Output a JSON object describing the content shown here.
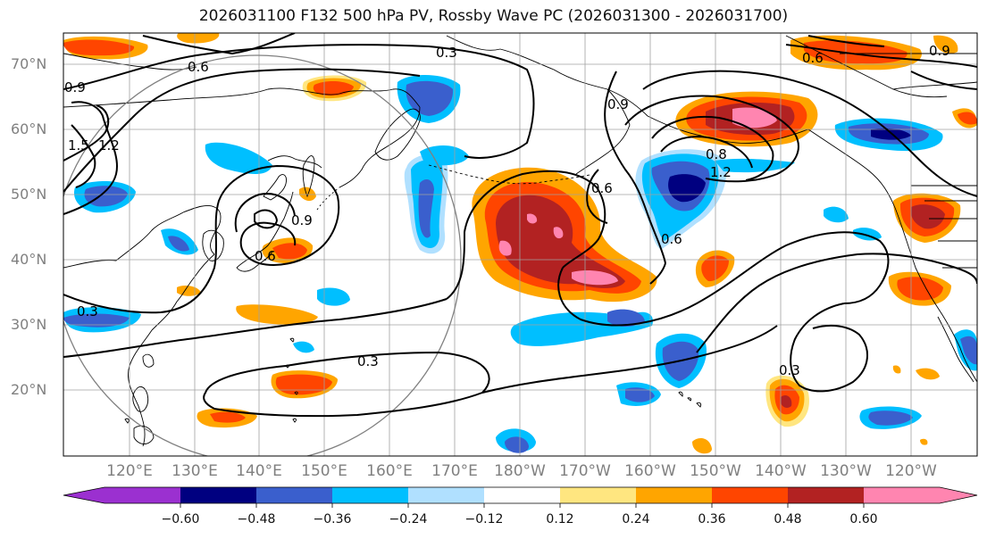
{
  "title": "2026031100 F132 500 hPa PV, Rossby Wave PC (2026031300 - 2026031700)",
  "lat_labels": [
    "70°N",
    "60°N",
    "50°N",
    "40°N",
    "30°N",
    "20°N"
  ],
  "lon_labels": [
    "120°E",
    "130°E",
    "140°E",
    "150°E",
    "160°E",
    "170°E",
    "180°W",
    "170°W",
    "160°W",
    "150°W",
    "140°W",
    "130°W",
    "120°W"
  ],
  "contour_labels": [
    "0.3",
    "0.6",
    "0.9",
    "1.2",
    "1.5",
    "0.3",
    "0.3",
    "0.6",
    "0.9",
    "0.6",
    "0.6",
    "0.9",
    "0.6",
    "0.9",
    "1.2",
    "0.8",
    "0.3"
  ],
  "colorbar": {
    "ticks": [
      "−0.60",
      "−0.48",
      "−0.36",
      "−0.24",
      "−0.12",
      "0.12",
      "0.24",
      "0.36",
      "0.48",
      "0.60"
    ],
    "colors": [
      "#9b30d0",
      "#000080",
      "#3a5fcd",
      "#00bfff",
      "#b0e0ff",
      "#ffffff",
      "#ffe680",
      "#ffa500",
      "#ff4500",
      "#b22222",
      "#ff85b0"
    ]
  },
  "colors": {
    "grid": "#a0a0a0",
    "coast": "#000000",
    "contour": "#000000",
    "circle": "#808080"
  }
}
